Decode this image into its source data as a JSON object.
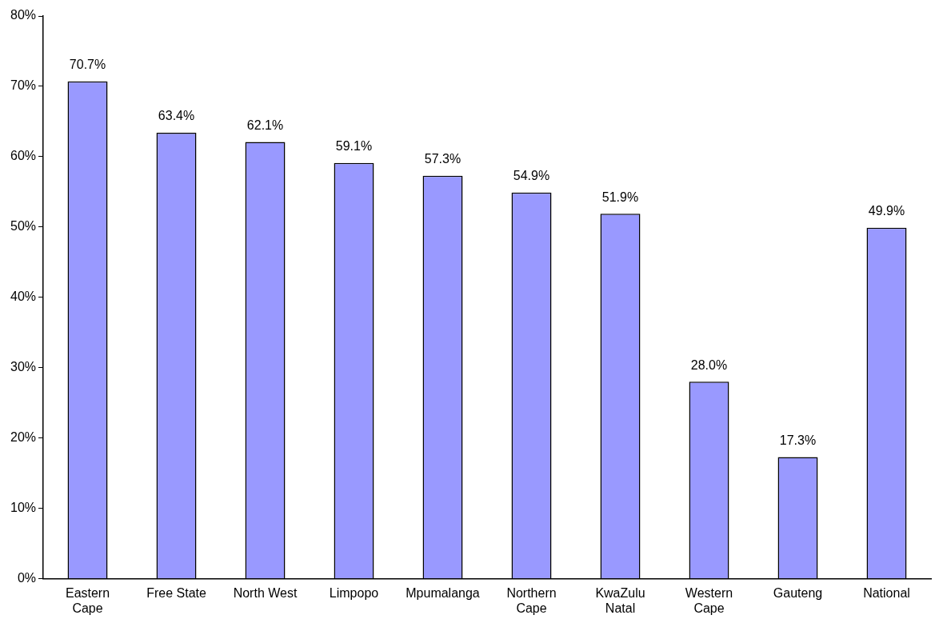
{
  "chart_data": {
    "type": "bar",
    "categories": [
      "Eastern Cape",
      "Free State",
      "North West",
      "Limpopo",
      "Mpumalanga",
      "Northern Cape",
      "KwaZulu Natal",
      "Western Cape",
      "Gauteng",
      "National"
    ],
    "values": [
      70.7,
      63.4,
      62.1,
      59.1,
      57.3,
      54.9,
      51.9,
      28.0,
      17.3,
      49.9
    ],
    "value_labels": [
      "70.7%",
      "63.4%",
      "62.1%",
      "59.1%",
      "57.3%",
      "54.9%",
      "51.9%",
      "28.0%",
      "17.3%",
      "49.9%"
    ],
    "color": "#9999ff",
    "ylim": [
      0,
      80
    ],
    "yticks": [
      {
        "value": 0,
        "label": "0%"
      },
      {
        "value": 10,
        "label": "10%"
      },
      {
        "value": 20,
        "label": "20%"
      },
      {
        "value": 30,
        "label": "30%"
      },
      {
        "value": 40,
        "label": "40%"
      },
      {
        "value": 50,
        "label": "50%"
      },
      {
        "value": 60,
        "label": "60%"
      },
      {
        "value": 70,
        "label": "70%"
      },
      {
        "value": 80,
        "label": "80%"
      }
    ],
    "grid": false,
    "legend": false
  }
}
